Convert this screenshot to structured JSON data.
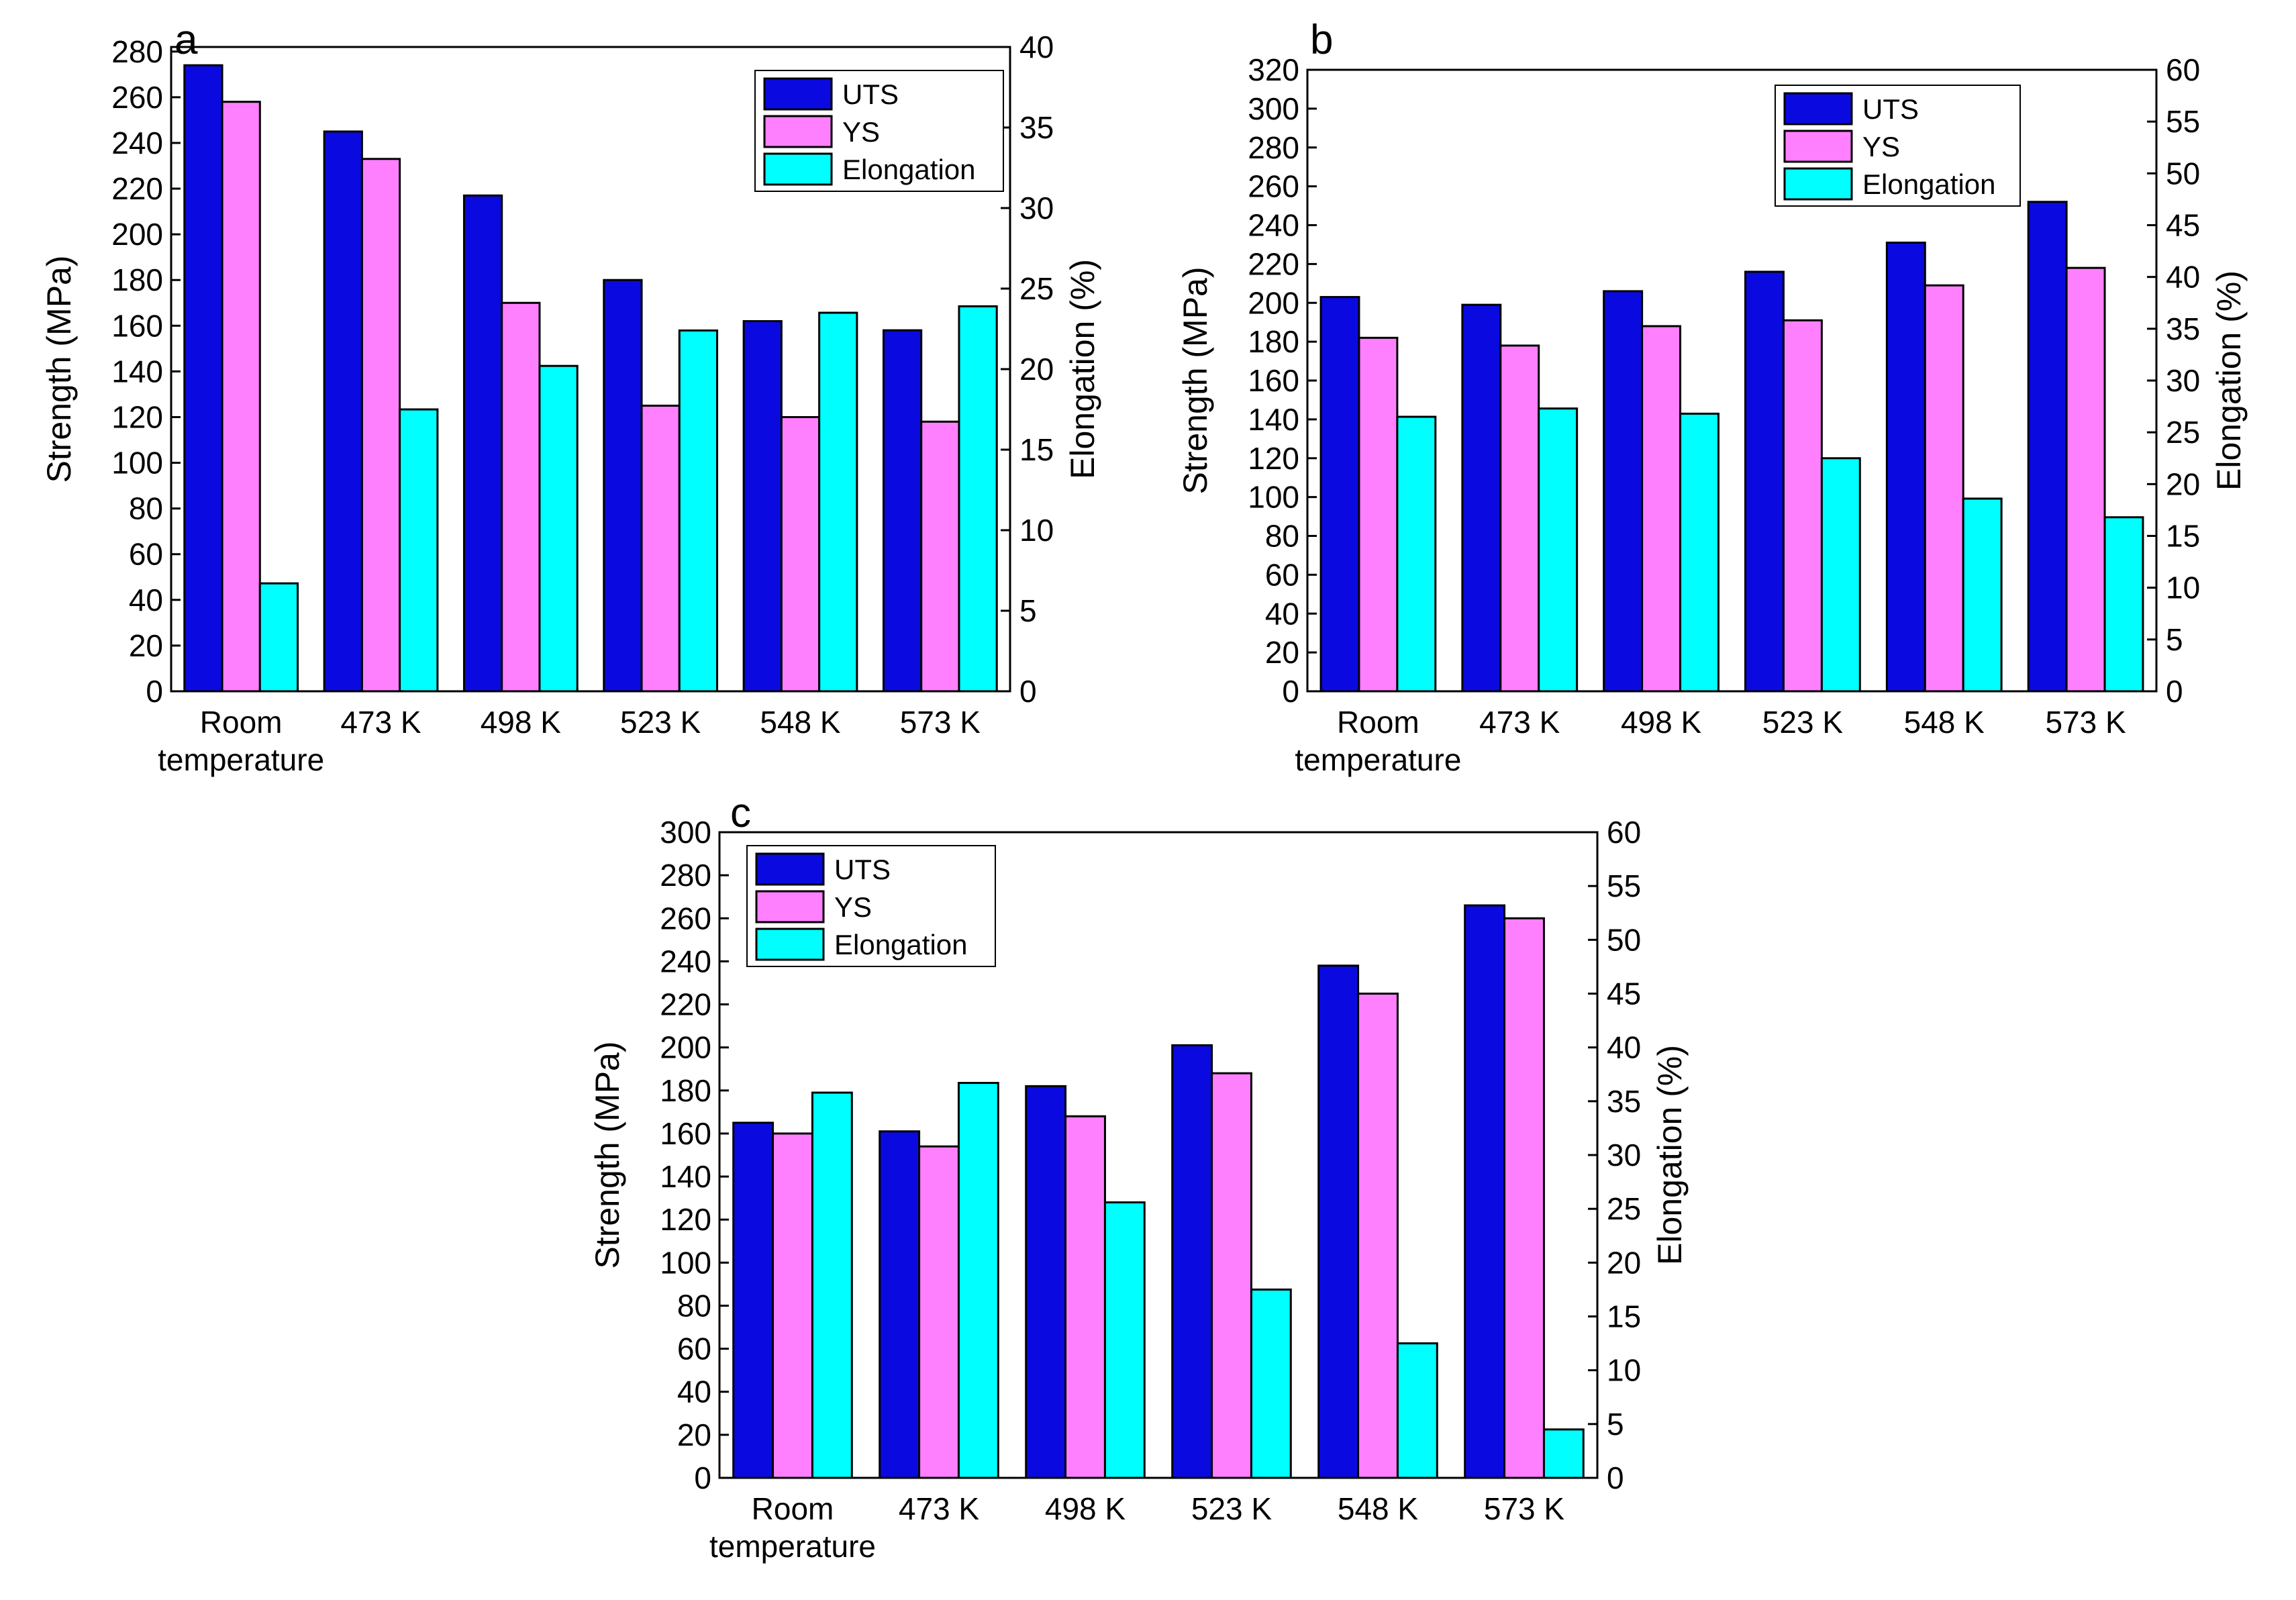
{
  "chart_data": [
    {
      "type": "bar",
      "panel_label": "a",
      "categories": [
        [
          "Room",
          "temperature"
        ],
        [
          "473 K"
        ],
        [
          "498 K"
        ],
        [
          "523 K"
        ],
        [
          "548 K"
        ],
        [
          "573 K"
        ]
      ],
      "series": [
        {
          "name": "UTS",
          "axis": "left",
          "color": "#0a0ae0",
          "values": [
            274,
            245,
            217,
            180,
            162,
            158
          ]
        },
        {
          "name": "YS",
          "axis": "left",
          "color": "#ff80ff",
          "values": [
            258,
            233,
            170,
            125,
            120,
            118
          ]
        },
        {
          "name": "Elongation",
          "axis": "right",
          "color": "#00ffff",
          "values": [
            6.7,
            17.5,
            20.2,
            22.4,
            23.5,
            23.9
          ]
        }
      ],
      "ylabel": "Strength (MPa)",
      "y2label": "Elongation (%)",
      "ylim": [
        0,
        282
      ],
      "y2lim": [
        0,
        40
      ],
      "yticks": [
        0,
        20,
        40,
        60,
        80,
        100,
        120,
        140,
        160,
        180,
        200,
        220,
        240,
        260,
        280
      ],
      "y2ticks": [
        0,
        5,
        10,
        15,
        20,
        25,
        30,
        35,
        40
      ],
      "legend_position": "top-right",
      "grid": false
    },
    {
      "type": "bar",
      "panel_label": "b",
      "categories": [
        [
          "Room",
          "temperature"
        ],
        [
          "473 K"
        ],
        [
          "498 K"
        ],
        [
          "523 K"
        ],
        [
          "548 K"
        ],
        [
          "573 K"
        ]
      ],
      "series": [
        {
          "name": "UTS",
          "axis": "left",
          "color": "#0a0ae0",
          "values": [
            203,
            199,
            206,
            216,
            231,
            252
          ]
        },
        {
          "name": "YS",
          "axis": "left",
          "color": "#ff80ff",
          "values": [
            182,
            178,
            188,
            191,
            209,
            218
          ]
        },
        {
          "name": "Elongation",
          "axis": "right",
          "color": "#00ffff",
          "values": [
            26.5,
            27.3,
            26.8,
            22.5,
            18.6,
            16.8
          ]
        }
      ],
      "ylabel": "Strength (MPa)",
      "y2label": "Elongation (%)",
      "ylim": [
        0,
        320
      ],
      "y2lim": [
        0,
        60
      ],
      "yticks": [
        0,
        20,
        40,
        60,
        80,
        100,
        120,
        140,
        160,
        180,
        200,
        220,
        240,
        260,
        280,
        300,
        320
      ],
      "y2ticks": [
        0,
        5,
        10,
        15,
        20,
        25,
        30,
        35,
        40,
        45,
        50,
        55,
        60
      ],
      "legend_position": "top-right",
      "grid": false
    },
    {
      "type": "bar",
      "panel_label": "c",
      "categories": [
        [
          "Room",
          "temperature"
        ],
        [
          "473 K"
        ],
        [
          "498 K"
        ],
        [
          "523 K"
        ],
        [
          "548 K"
        ],
        [
          "573 K"
        ]
      ],
      "series": [
        {
          "name": "UTS",
          "axis": "left",
          "color": "#0a0ae0",
          "values": [
            165,
            161,
            182,
            201,
            238,
            266
          ]
        },
        {
          "name": "YS",
          "axis": "left",
          "color": "#ff80ff",
          "values": [
            160,
            154,
            168,
            188,
            225,
            260
          ]
        },
        {
          "name": "Elongation",
          "axis": "right",
          "color": "#00ffff",
          "values": [
            35.8,
            36.7,
            25.6,
            17.5,
            12.5,
            4.5
          ]
        }
      ],
      "ylabel": "Strength (MPa)",
      "y2label": "Elongation (%)",
      "ylim": [
        0,
        300
      ],
      "y2lim": [
        0,
        60
      ],
      "yticks": [
        0,
        20,
        40,
        60,
        80,
        100,
        120,
        140,
        160,
        180,
        200,
        220,
        240,
        260,
        280,
        300
      ],
      "y2ticks": [
        0,
        5,
        10,
        15,
        20,
        25,
        30,
        35,
        40,
        45,
        50,
        55,
        60
      ],
      "legend_position": "top-left",
      "grid": false
    }
  ]
}
